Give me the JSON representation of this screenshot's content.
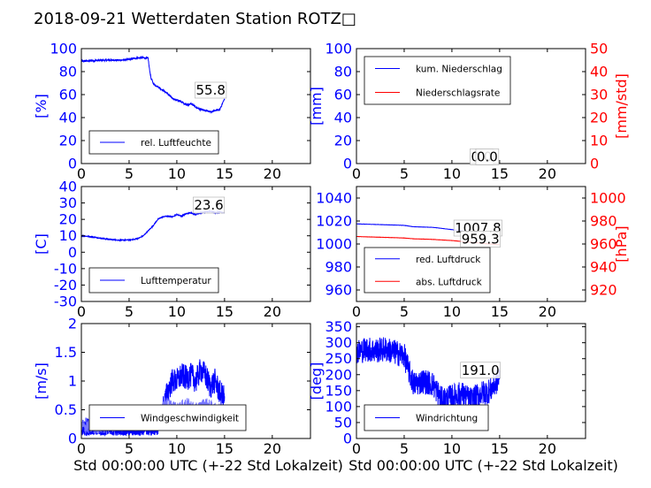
{
  "title": "2018-09-21 Wetterdaten Station ROTZ□",
  "chart_data": [
    {
      "id": "humidity",
      "type": "line",
      "ylabel": "[%]",
      "ylabel_color": "#0000ff",
      "xlim": [
        0,
        24
      ],
      "ylim": [
        0,
        100
      ],
      "xticks": [
        0,
        5,
        10,
        15,
        20
      ],
      "yticks": [
        0,
        20,
        40,
        60,
        80,
        100
      ],
      "series": [
        {
          "name": "rel. Luftfeuchte",
          "color": "#0000ff",
          "noise": 0.8,
          "x": [
            0,
            1,
            2,
            3,
            4,
            5,
            5.5,
            6,
            6.5,
            7,
            7.1,
            7.3,
            7.6,
            8,
            8.5,
            9,
            9.5,
            10,
            10.5,
            11,
            11.5,
            12,
            12.5,
            13,
            13.5,
            14,
            14.5,
            15
          ],
          "y": [
            89,
            89.5,
            89.8,
            90,
            90,
            90.5,
            91.5,
            92,
            92,
            91.5,
            84,
            74,
            69,
            67,
            64,
            61,
            57,
            55,
            54,
            51,
            52,
            49,
            47,
            46,
            45,
            46,
            47,
            56
          ]
        }
      ],
      "legend": {
        "loc": "lower-left",
        "entries": [
          "rel. Luftfeuchte"
        ]
      },
      "annotations": [
        {
          "text": "55.8",
          "x": 12,
          "y": 60
        }
      ]
    },
    {
      "id": "precip",
      "type": "line",
      "ylabel": "[mm]",
      "ylabel_color": "#0000ff",
      "y2label": "[mm/std]",
      "y2label_color": "#ff0000",
      "xlim": [
        0,
        24
      ],
      "ylim": [
        0,
        100
      ],
      "y2lim": [
        0,
        50
      ],
      "xticks": [
        0,
        5,
        10,
        15,
        20
      ],
      "yticks": [
        0,
        20,
        40,
        60,
        80,
        100
      ],
      "y2ticks": [
        0,
        10,
        20,
        30,
        40,
        50
      ],
      "series": [
        {
          "name": "kum. Niederschlag",
          "color": "#0000ff",
          "axis": "left",
          "noise": 0,
          "x": [
            0,
            15
          ],
          "y": [
            0,
            0
          ]
        },
        {
          "name": "Niederschlagsrate",
          "color": "#ff0000",
          "axis": "right",
          "noise": 0,
          "x": [
            0,
            15
          ],
          "y": [
            0,
            0
          ]
        }
      ],
      "legend": {
        "loc": "upper-left",
        "entries": [
          "kum. Niederschlag",
          "Niederschlagsrate"
        ]
      },
      "annotations": [
        {
          "text": "0.0",
          "x": 12,
          "y": 2
        },
        {
          "text": "0.0",
          "x": 12.6,
          "y": 2
        }
      ]
    },
    {
      "id": "temperature",
      "type": "line",
      "ylabel": "[C]",
      "ylabel_color": "#0000ff",
      "xlim": [
        0,
        24
      ],
      "ylim": [
        -30,
        40
      ],
      "xticks": [
        0,
        5,
        10,
        15,
        20
      ],
      "yticks": [
        -30,
        -20,
        -10,
        0,
        10,
        20,
        30,
        40
      ],
      "series": [
        {
          "name": "Lufttemperatur",
          "color": "#0000ff",
          "noise": 0.3,
          "x": [
            0,
            1,
            2,
            3,
            4,
            5,
            5.5,
            6,
            6.5,
            7,
            7.5,
            8,
            8.5,
            9,
            9.5,
            10,
            10.5,
            11,
            11.5,
            12,
            12.5,
            13,
            13.5,
            14,
            14.5,
            15
          ],
          "y": [
            10,
            9.5,
            8.5,
            7.8,
            7.3,
            7.5,
            7.8,
            8.5,
            10,
            13,
            16,
            20,
            21.5,
            22,
            21.5,
            23,
            22,
            23.5,
            24,
            23,
            24,
            24.5,
            25,
            24,
            24.5,
            24
          ]
        }
      ],
      "legend": {
        "loc": "lower-left",
        "entries": [
          "Lufttemperatur"
        ]
      },
      "annotations": [
        {
          "text": "23.6",
          "x": 11.8,
          "y": 26
        }
      ]
    },
    {
      "id": "pressure",
      "type": "line",
      "ylabel": "",
      "ylabel_color": "#0000ff",
      "y2label": "[hPa]",
      "y2label_color": "#ff0000",
      "xlim": [
        0,
        24
      ],
      "ylim": [
        950,
        1050
      ],
      "y2lim": [
        910,
        1010
      ],
      "xticks": [
        0,
        5,
        10,
        15,
        20
      ],
      "yticks": [
        960,
        980,
        1000,
        1020,
        1040
      ],
      "y2ticks": [
        920,
        940,
        960,
        980,
        1000
      ],
      "series": [
        {
          "name": "red. Luftdruck",
          "color": "#0000ff",
          "axis": "left",
          "noise": 0.1,
          "x": [
            0,
            2,
            4,
            5,
            6,
            8,
            10,
            12,
            14,
            15
          ],
          "y": [
            1017.5,
            1017,
            1016.5,
            1016.2,
            1015,
            1014.5,
            1012.5,
            1010.5,
            1008.5,
            1007.8
          ]
        },
        {
          "name": "abs. Luftdruck",
          "color": "#ff0000",
          "axis": "right",
          "noise": 0.1,
          "x": [
            0,
            2,
            4,
            5,
            6,
            8,
            10,
            12,
            14,
            15
          ],
          "y": [
            966.5,
            966,
            965.5,
            965.2,
            964.5,
            964,
            963,
            961.5,
            960,
            959.3
          ]
        }
      ],
      "legend": {
        "loc": "lower-left",
        "entries": [
          "red. Luftdruck",
          "abs. Luftdruck"
        ]
      },
      "annotations": [
        {
          "text": "1007.8",
          "x": 10.3,
          "y": 1010
        },
        {
          "text": "959.3",
          "x": 11,
          "y": 1000.5
        }
      ]
    },
    {
      "id": "windspeed",
      "type": "line",
      "ylabel": "[m/s]",
      "ylabel_color": "#0000ff",
      "xlabel": "Std 00:00:00 UTC (+-22 Std Lokalzeit)",
      "xlim": [
        0,
        24
      ],
      "ylim": [
        0,
        2.0
      ],
      "xticks": [
        0,
        5,
        10,
        15,
        20
      ],
      "yticks": [
        0.0,
        0.5,
        1.0,
        1.5,
        2.0
      ],
      "series": [
        {
          "name": "Windgeschwindigkeit",
          "color": "#0000ff",
          "noise": 0.22,
          "x": [
            0,
            1,
            2,
            3,
            4,
            5,
            6,
            7,
            8,
            8.5,
            9,
            9.5,
            10,
            10.5,
            11,
            11.5,
            12,
            12.5,
            13,
            13.5,
            14,
            14.5,
            15
          ],
          "y": [
            0.15,
            0.15,
            0.12,
            0.15,
            0.12,
            0.12,
            0.15,
            0.18,
            0.2,
            0.5,
            0.8,
            1.0,
            1.0,
            1.1,
            1.05,
            1.1,
            1.0,
            1.2,
            1.1,
            0.9,
            1.0,
            0.8,
            0.7
          ]
        },
        {
          "name": "",
          "color": "#7777ff",
          "noise": 0.12,
          "x": [
            0,
            2,
            4,
            6,
            7,
            8,
            8.5,
            9,
            10,
            11,
            12,
            13,
            14,
            15
          ],
          "y": [
            0.2,
            0.2,
            0.25,
            0.25,
            0.3,
            0.3,
            0.6,
            0.6,
            0.5,
            0.6,
            0.5,
            0.6,
            0.5,
            0.5
          ]
        }
      ],
      "legend": {
        "loc": "lower-left",
        "entries": [
          "Windgeschwindigkeit"
        ]
      },
      "annotations": []
    },
    {
      "id": "winddir",
      "type": "line",
      "ylabel": "[deg]",
      "ylabel_color": "#0000ff",
      "xlabel": "Std 00:00:00 UTC (+-22 Std Lokalzeit)",
      "xlim": [
        0,
        24
      ],
      "ylim": [
        0,
        360
      ],
      "xticks": [
        0,
        5,
        10,
        15,
        20
      ],
      "yticks": [
        0,
        50,
        100,
        150,
        200,
        250,
        300,
        350
      ],
      "series": [
        {
          "name": "Windrichtung",
          "color": "#0000ff",
          "noise": 40,
          "x": [
            0,
            1,
            2,
            3,
            4,
            5,
            5.5,
            6,
            7,
            8,
            9,
            10,
            11,
            12,
            13,
            14,
            15
          ],
          "y": [
            270,
            280,
            275,
            280,
            270,
            260,
            210,
            170,
            180,
            170,
            120,
            130,
            140,
            120,
            140,
            150,
            190
          ]
        }
      ],
      "legend": {
        "loc": "lower-left",
        "entries": [
          "Windrichtung"
        ]
      },
      "annotations": [
        {
          "text": "191.0",
          "x": 11,
          "y": 200
        }
      ]
    }
  ]
}
